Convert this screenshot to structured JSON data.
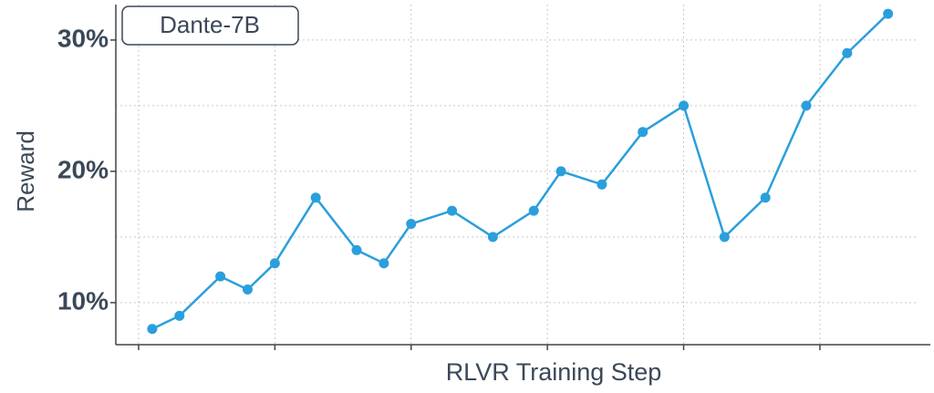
{
  "chart_data": {
    "type": "line",
    "legend_label": "Dante-7B",
    "xlabel": "RLVR Training Step",
    "ylabel": "Reward",
    "x": [
      1,
      3,
      6,
      8,
      10,
      13,
      16,
      18,
      20,
      23,
      26,
      29,
      31,
      34,
      37,
      40,
      43,
      46,
      49,
      52,
      55
    ],
    "series": [
      {
        "color": "#2a9fdc",
        "values": [
          8,
          9,
          12,
          11,
          13,
          18,
          14,
          13,
          16,
          17,
          15,
          17,
          20,
          19,
          23,
          25,
          15,
          18,
          25,
          29,
          32
        ]
      }
    ],
    "xlim": [
      -1.67,
      57.1
    ],
    "xticks": [
      0,
      10,
      20,
      30,
      40,
      50
    ],
    "ylim": [
      6.8,
      32.7
    ],
    "yticks": [
      {
        "value": 10,
        "label": "10%"
      },
      {
        "value": 20,
        "label": "20%"
      },
      {
        "value": 30,
        "label": "30%"
      }
    ],
    "yminor": [
      15,
      25
    ],
    "grid": true
  }
}
